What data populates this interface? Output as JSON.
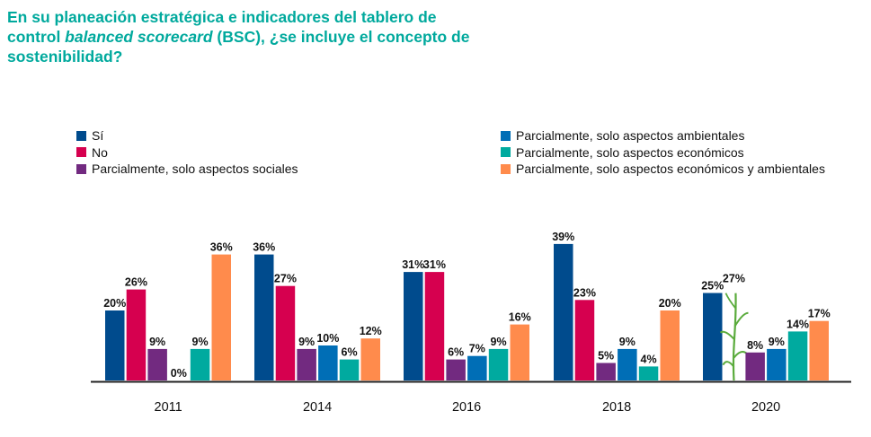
{
  "title": {
    "part1": "En su planeación estratégica e indicadores del tablero de control ",
    "italic": "balanced scorecard",
    "part2": " (BSC), ¿se incluye el concepto de sostenibilidad?"
  },
  "colors": {
    "title": "#00a99d",
    "si": "#004b8d",
    "no": "#d6004f",
    "sociales": "#722a80",
    "ambientales": "#006eb6",
    "economicos": "#00aa9f",
    "economicos_ambientales": "#ff8b4c",
    "axis": "#222222",
    "plant": "#5aab3c"
  },
  "legend": {
    "left": [
      {
        "label": "Sí",
        "color_key": "si"
      },
      {
        "label": "No",
        "color_key": "no"
      },
      {
        "label": "Parcialmente, solo aspectos sociales",
        "color_key": "sociales"
      }
    ],
    "right": [
      {
        "label": "Parcialmente, solo aspectos ambientales",
        "color_key": "ambientales"
      },
      {
        "label": "Parcialmente, solo aspectos económicos",
        "color_key": "economicos"
      },
      {
        "label": "Parcialmente, solo aspectos económicos y ambientales",
        "color_key": "economicos_ambientales"
      }
    ]
  },
  "chart_data": {
    "type": "bar",
    "title": "En su planeación estratégica e indicadores del tablero de control balanced scorecard (BSC), ¿se incluye el concepto de sostenibilidad?",
    "xlabel": "",
    "ylabel": "",
    "ylim": [
      0,
      40
    ],
    "grid": false,
    "legend_position": "top",
    "categories": [
      "2011",
      "2014",
      "2016",
      "2018",
      "2020"
    ],
    "series": [
      {
        "name": "Sí",
        "color_key": "si",
        "values": [
          20,
          36,
          31,
          39,
          25
        ]
      },
      {
        "name": "No",
        "color_key": "no",
        "values": [
          26,
          27,
          31,
          23,
          27
        ]
      },
      {
        "name": "Parcialmente, solo aspectos sociales",
        "color_key": "sociales",
        "values": [
          9,
          9,
          6,
          5,
          8
        ]
      },
      {
        "name": "Parcialmente, solo aspectos ambientales",
        "color_key": "ambientales",
        "values": [
          0,
          10,
          7,
          9,
          9
        ]
      },
      {
        "name": "Parcialmente, solo aspectos económicos",
        "color_key": "economicos",
        "values": [
          9,
          6,
          9,
          4,
          14
        ]
      },
      {
        "name": "Parcialmente, solo aspectos económicos y ambientales",
        "color_key": "economicos_ambientales",
        "values": [
          36,
          12,
          16,
          20,
          17
        ]
      }
    ],
    "value_suffix": "%",
    "annotations": [
      "2020 'No' bar is drawn as a plant illustration instead of a bar"
    ]
  }
}
